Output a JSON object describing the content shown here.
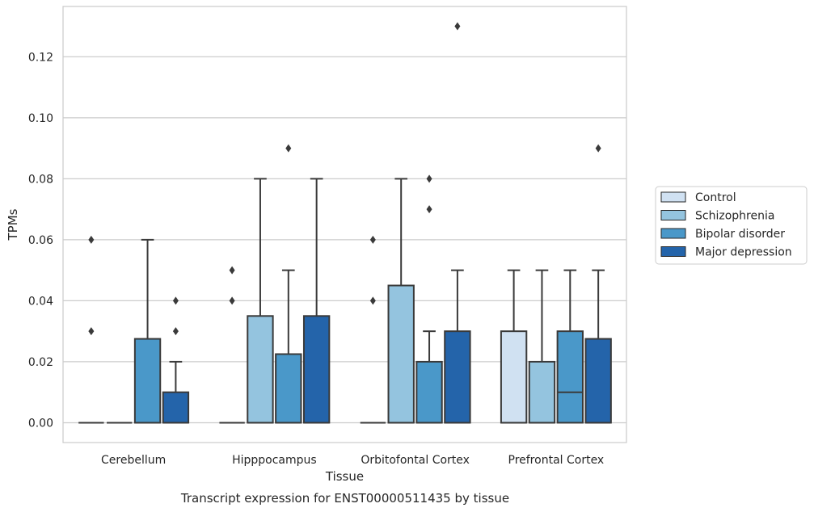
{
  "caption": "Transcript expression for ENST00000511435 by tissue",
  "chart_data": {
    "type": "box",
    "xlabel": "Tissue",
    "ylabel": "TPMs",
    "ylim": [
      -0.0065,
      0.1365
    ],
    "yticks": [
      0.0,
      0.02,
      0.04,
      0.06,
      0.08,
      0.1,
      0.12
    ],
    "ytick_labels": [
      "0.00",
      "0.02",
      "0.04",
      "0.06",
      "0.08",
      "0.10",
      "0.12"
    ],
    "grid": "horizontal",
    "legend_position": "right",
    "categories": [
      "Cerebellum",
      "Hipppocampus",
      "Orbitofontal Cortex",
      "Prefrontal Cortex"
    ],
    "series": [
      {
        "name": "Control",
        "color": "#d0e1f2",
        "boxes": [
          {
            "q1": 0,
            "median": 0,
            "q3": 0,
            "whisker_low": 0,
            "whisker_high": 0,
            "outliers": [
              0.03,
              0.06
            ]
          },
          {
            "q1": 0,
            "median": 0,
            "q3": 0,
            "whisker_low": 0,
            "whisker_high": 0,
            "outliers": [
              0.04,
              0.05
            ]
          },
          {
            "q1": 0,
            "median": 0,
            "q3": 0,
            "whisker_low": 0,
            "whisker_high": 0,
            "outliers": [
              0.04,
              0.06
            ]
          },
          {
            "q1": 0,
            "median": 0,
            "q3": 0.03,
            "whisker_low": 0,
            "whisker_high": 0.05,
            "outliers": []
          }
        ]
      },
      {
        "name": "Schizophrenia",
        "color": "#94c4df",
        "boxes": [
          {
            "q1": 0,
            "median": 0,
            "q3": 0,
            "whisker_low": 0,
            "whisker_high": 0,
            "outliers": []
          },
          {
            "q1": 0,
            "median": 0,
            "q3": 0.035,
            "whisker_low": 0,
            "whisker_high": 0.08,
            "outliers": []
          },
          {
            "q1": 0,
            "median": 0,
            "q3": 0.045,
            "whisker_low": 0,
            "whisker_high": 0.08,
            "outliers": []
          },
          {
            "q1": 0,
            "median": 0,
            "q3": 0.02,
            "whisker_low": 0,
            "whisker_high": 0.05,
            "outliers": []
          }
        ]
      },
      {
        "name": "Bipolar disorder",
        "color": "#4a98c9",
        "boxes": [
          {
            "q1": 0,
            "median": 0,
            "q3": 0.0275,
            "whisker_low": 0,
            "whisker_high": 0.06,
            "outliers": []
          },
          {
            "q1": 0,
            "median": 0,
            "q3": 0.0225,
            "whisker_low": 0,
            "whisker_high": 0.05,
            "outliers": [
              0.09
            ]
          },
          {
            "q1": 0,
            "median": 0,
            "q3": 0.02,
            "whisker_low": 0,
            "whisker_high": 0.03,
            "outliers": [
              0.07,
              0.08
            ]
          },
          {
            "q1": 0,
            "median": 0.01,
            "q3": 0.03,
            "whisker_low": 0,
            "whisker_high": 0.05,
            "outliers": []
          }
        ]
      },
      {
        "name": "Major depression",
        "color": "#2464aa",
        "boxes": [
          {
            "q1": 0,
            "median": 0,
            "q3": 0.01,
            "whisker_low": 0,
            "whisker_high": 0.02,
            "outliers": [
              0.03,
              0.04
            ]
          },
          {
            "q1": 0,
            "median": 0,
            "q3": 0.035,
            "whisker_low": 0,
            "whisker_high": 0.08,
            "outliers": []
          },
          {
            "q1": 0,
            "median": 0,
            "q3": 0.03,
            "whisker_low": 0,
            "whisker_high": 0.05,
            "outliers": [
              0.13
            ]
          },
          {
            "q1": 0,
            "median": 0,
            "q3": 0.0275,
            "whisker_low": 0,
            "whisker_high": 0.05,
            "outliers": [
              0.09
            ]
          }
        ]
      }
    ]
  }
}
